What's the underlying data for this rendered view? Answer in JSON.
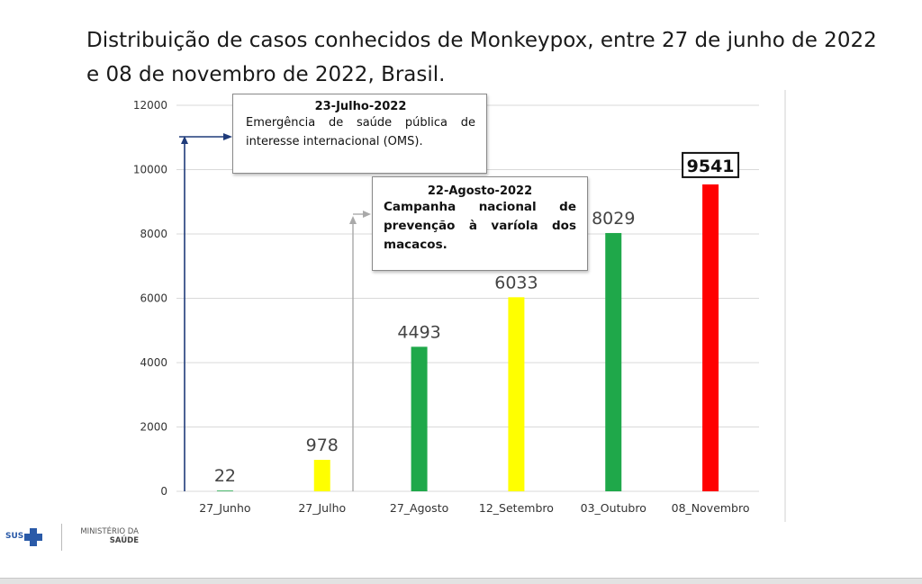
{
  "title": "Distribuição de casos conhecidos de Monkeypox, entre 27 de junho de 2022 e 08 de novembro de 2022, Brasil.",
  "colors": {
    "green": "#1fa84a",
    "yellow": "#ffff00",
    "red": "#ff0000",
    "arrow_dark": "#1f3b7a",
    "arrow_gray": "#a9a9a9",
    "grid": "#d9d9d9"
  },
  "chart_data": {
    "type": "bar",
    "categories": [
      "27_Junho",
      "27_Julho",
      "27_Agosto",
      "12_Setembro",
      "03_Outubro",
      "08_Novembro"
    ],
    "values": [
      22,
      978,
      4493,
      6033,
      8029,
      9541
    ],
    "data_labels": [
      "22",
      "978",
      "4493",
      "6033",
      "8029",
      "9541"
    ],
    "bar_colors": [
      "#1fa84a",
      "#ffff00",
      "#1fa84a",
      "#ffff00",
      "#1fa84a",
      "#ff0000"
    ],
    "highlighted_label": "9541",
    "ylim": [
      0,
      12000
    ],
    "yticks": [
      0,
      2000,
      4000,
      6000,
      8000,
      10000,
      12000
    ],
    "title": "Distribuição de casos conhecidos de Monkeypox, entre 27 de junho de 2022 e 08 de novembro de 2022, Brasil.",
    "xlabel": "",
    "ylabel": "",
    "grid": true,
    "annotations": [
      {
        "title": "23-Julho-2022",
        "text": "Emergência de saúde pública de interesse internacional (OMS).",
        "arrow_color": "#1f3b7a"
      },
      {
        "title": "22-Agosto-2022",
        "text": "Campanha nacional de prevenção à varíola dos macacos.",
        "arrow_color": "#a9a9a9"
      }
    ]
  },
  "logo": {
    "sus": "SUS",
    "ministry_line1": "MINISTÉRIO DA",
    "ministry_line2": "SAÚDE"
  }
}
